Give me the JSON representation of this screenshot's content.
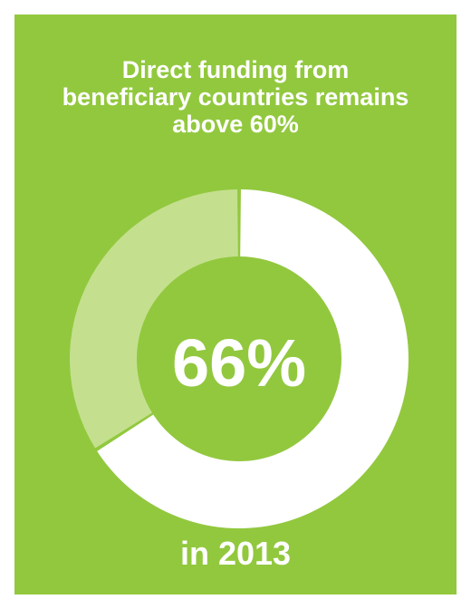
{
  "title_lines": [
    "Direct funding from",
    "beneficiary countries remains",
    "above 60%"
  ],
  "center_label": "66%",
  "footer_label": "in 2013",
  "colors": {
    "panel": "#92c83e",
    "primary": "#ffffff",
    "secondary": "#c4e08e"
  },
  "chart_data": {
    "type": "pie",
    "title": "Direct funding from beneficiary countries remains above 60%",
    "slices": [
      {
        "value": 66,
        "color": "#ffffff"
      },
      {
        "value": 34,
        "color": "#c4e08e"
      }
    ]
  }
}
